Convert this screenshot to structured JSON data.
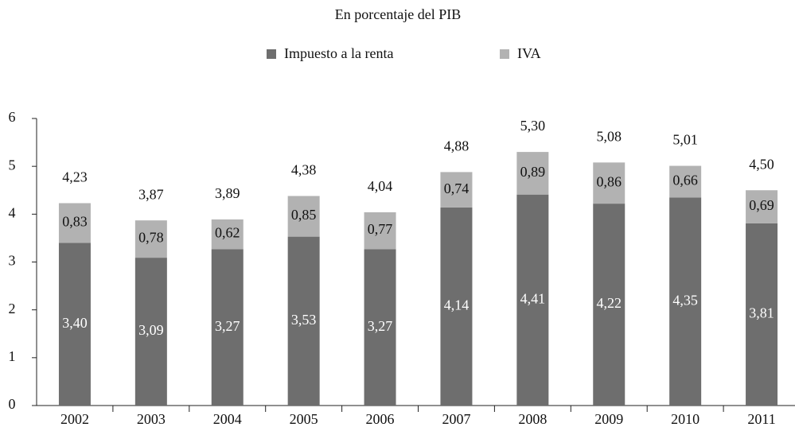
{
  "chart_data": {
    "type": "stacked_bar",
    "title": "En porcentaje del PIB",
    "categories": [
      "2002",
      "2003",
      "2004",
      "2005",
      "2006",
      "2007",
      "2008",
      "2009",
      "2010",
      "2011"
    ],
    "series": [
      {
        "name": "Impuesto a la renta",
        "color": "#6e6e6e",
        "values": [
          3.4,
          3.09,
          3.27,
          3.53,
          3.27,
          4.14,
          4.41,
          4.22,
          4.35,
          3.81
        ],
        "value_labels": [
          "3,40",
          "3,09",
          "3,27",
          "3,53",
          "3,27",
          "4,14",
          "4,41",
          "4,22",
          "4,35",
          "3,81"
        ]
      },
      {
        "name": "IVA",
        "color": "#b2b2b2",
        "values": [
          0.83,
          0.78,
          0.62,
          0.85,
          0.77,
          0.74,
          0.89,
          0.86,
          0.66,
          0.69
        ],
        "value_labels": [
          "0,83",
          "0,78",
          "0,62",
          "0,85",
          "0,77",
          "0,74",
          "0,89",
          "0,86",
          "0,66",
          "0,69"
        ]
      }
    ],
    "totals": [
      4.23,
      3.87,
      3.89,
      4.38,
      4.04,
      4.88,
      5.3,
      5.08,
      5.01,
      4.5
    ],
    "total_labels": [
      "4,23",
      "3,87",
      "3,89",
      "4,38",
      "4,04",
      "4,88",
      "5,30",
      "5,08",
      "5,01",
      "4,50"
    ],
    "ylim": [
      0,
      6
    ],
    "yticks": [
      0,
      1,
      2,
      3,
      4,
      5,
      6
    ]
  }
}
